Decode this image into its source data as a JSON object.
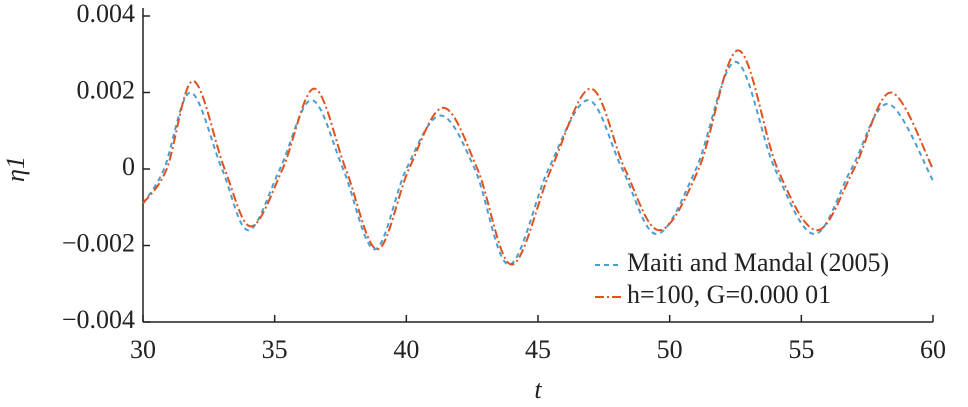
{
  "chart_data": {
    "type": "line",
    "x_label": "t",
    "y_label": "η1",
    "xlim": [
      30,
      60
    ],
    "xticks": [
      30,
      35,
      40,
      45,
      50,
      55,
      60
    ],
    "ylim": [
      -0.004,
      0.004
    ],
    "yticks": [
      {
        "value": -0.004,
        "label": "−0.004"
      },
      {
        "value": -0.002,
        "label": "−0.002"
      },
      0,
      0.002,
      0.004
    ],
    "legend": "lower right",
    "series": [
      {
        "name": "Maiti and Mandal (2005)",
        "color": "#4a9fd0",
        "dash": "dashed",
        "x": [
          30,
          30.8,
          31.8,
          33.0,
          34.0,
          35.2,
          36.4,
          37.6,
          38.8,
          40.0,
          41.3,
          42.6,
          43.9,
          45.4,
          46.9,
          48.2,
          49.5,
          51.0,
          52.5,
          54.0,
          55.5,
          56.9,
          58.3,
          60
        ],
        "values": [
          -0.0009,
          0,
          0.002,
          0,
          -0.0016,
          0,
          0.0018,
          0,
          -0.0021,
          0,
          0.0014,
          0,
          -0.0025,
          0,
          0.0018,
          0,
          -0.0017,
          0,
          0.0028,
          0,
          -0.0017,
          0,
          0.0017,
          -0.0003
        ]
      },
      {
        "name": "h=100, G=0.000 01",
        "color": "#e0521f",
        "dash": "dashdot",
        "x": [
          30,
          30.9,
          31.9,
          33.1,
          34.1,
          35.3,
          36.5,
          37.7,
          38.9,
          40.1,
          41.4,
          42.7,
          44.0,
          45.5,
          47.0,
          48.3,
          49.6,
          51.1,
          52.6,
          54.1,
          55.6,
          57.0,
          58.4,
          60
        ],
        "values": [
          -0.0009,
          0,
          0.0023,
          0,
          -0.0015,
          0,
          0.0021,
          0,
          -0.0021,
          0,
          0.0016,
          0,
          -0.0025,
          0,
          0.0021,
          0,
          -0.0016,
          0,
          0.0031,
          0,
          -0.0016,
          0,
          0.002,
          0
        ]
      }
    ]
  }
}
